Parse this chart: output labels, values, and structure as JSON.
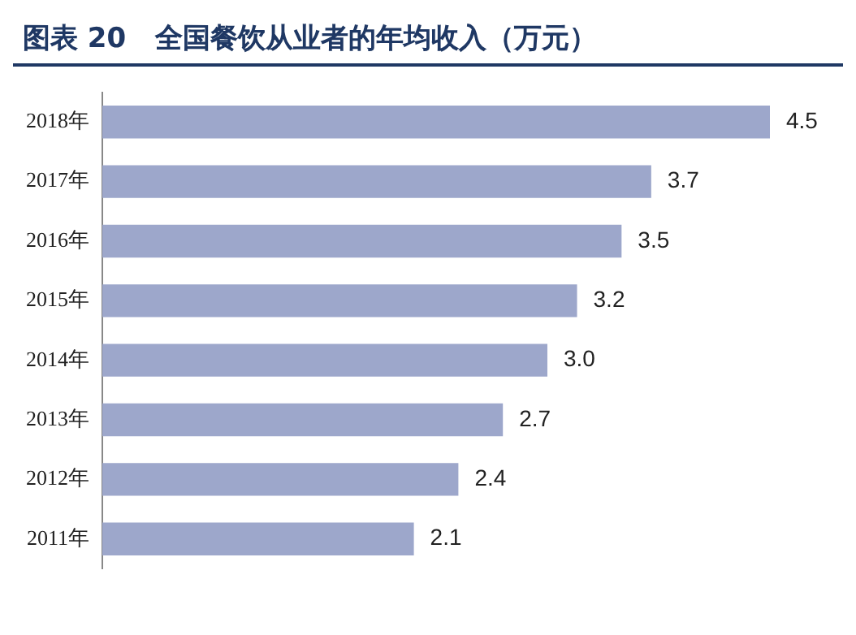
{
  "chart_data": {
    "type": "bar",
    "title": "图表 20   全国餐饮从业者的年均收入（万元）",
    "orientation": "horizontal",
    "categories": [
      "2018年",
      "2017年",
      "2016年",
      "2015年",
      "2014年",
      "2013年",
      "2012年",
      "2011年"
    ],
    "values": [
      4.5,
      3.7,
      3.5,
      3.2,
      3.0,
      2.7,
      2.4,
      2.1
    ],
    "color": "#9da7cb",
    "value_labels": [
      "4.5",
      "3.7",
      "3.5",
      "3.2",
      "3.0",
      "2.7",
      "2.4",
      "2.1"
    ],
    "legend": false,
    "grid": false
  }
}
